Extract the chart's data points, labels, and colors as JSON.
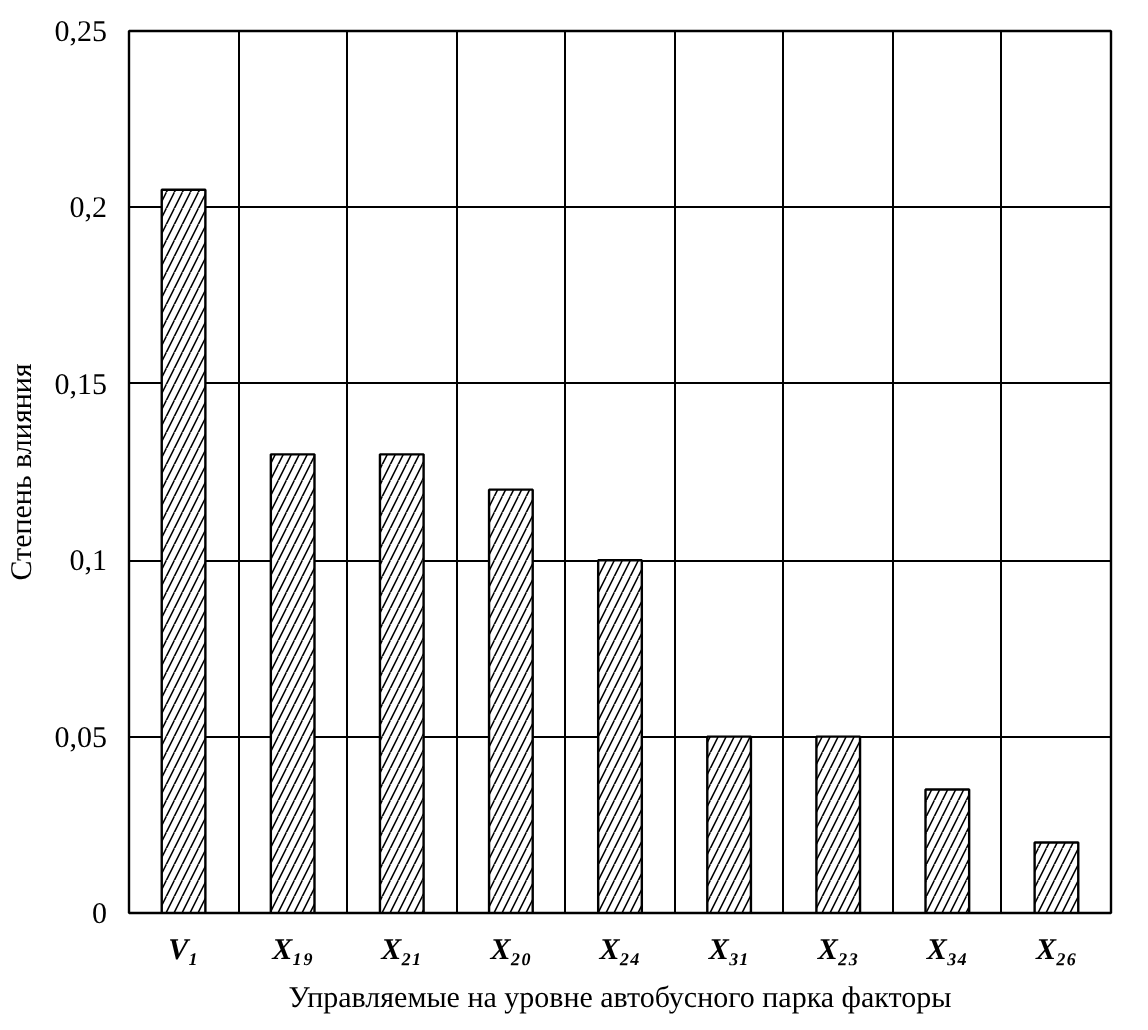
{
  "chart_data": {
    "type": "bar",
    "xlabel": "Управляемые на уровне автобусного парка факторы",
    "ylabel": "Степень влияния",
    "categories": [
      "V₁",
      "X₁₉",
      "X₂₁",
      "X₂₀",
      "X₂₄",
      "X₃₁",
      "X₂₃",
      "X₃₄",
      "X₂₆"
    ],
    "values": [
      0.205,
      0.13,
      0.13,
      0.12,
      0.1,
      0.05,
      0.05,
      0.035,
      0.02
    ],
    "color": "#ffffff",
    "ylim": [
      0,
      0.25
    ],
    "yticks": [
      0,
      {
        "value": 0.05,
        "label": "0,05"
      },
      {
        "value": 0.1,
        "label": "0,1"
      },
      {
        "value": 0.15,
        "label": "0,15"
      },
      {
        "value": 0.2,
        "label": "0,2"
      },
      {
        "value": 0.25,
        "label": "0,25"
      }
    ],
    "grid": true
  }
}
